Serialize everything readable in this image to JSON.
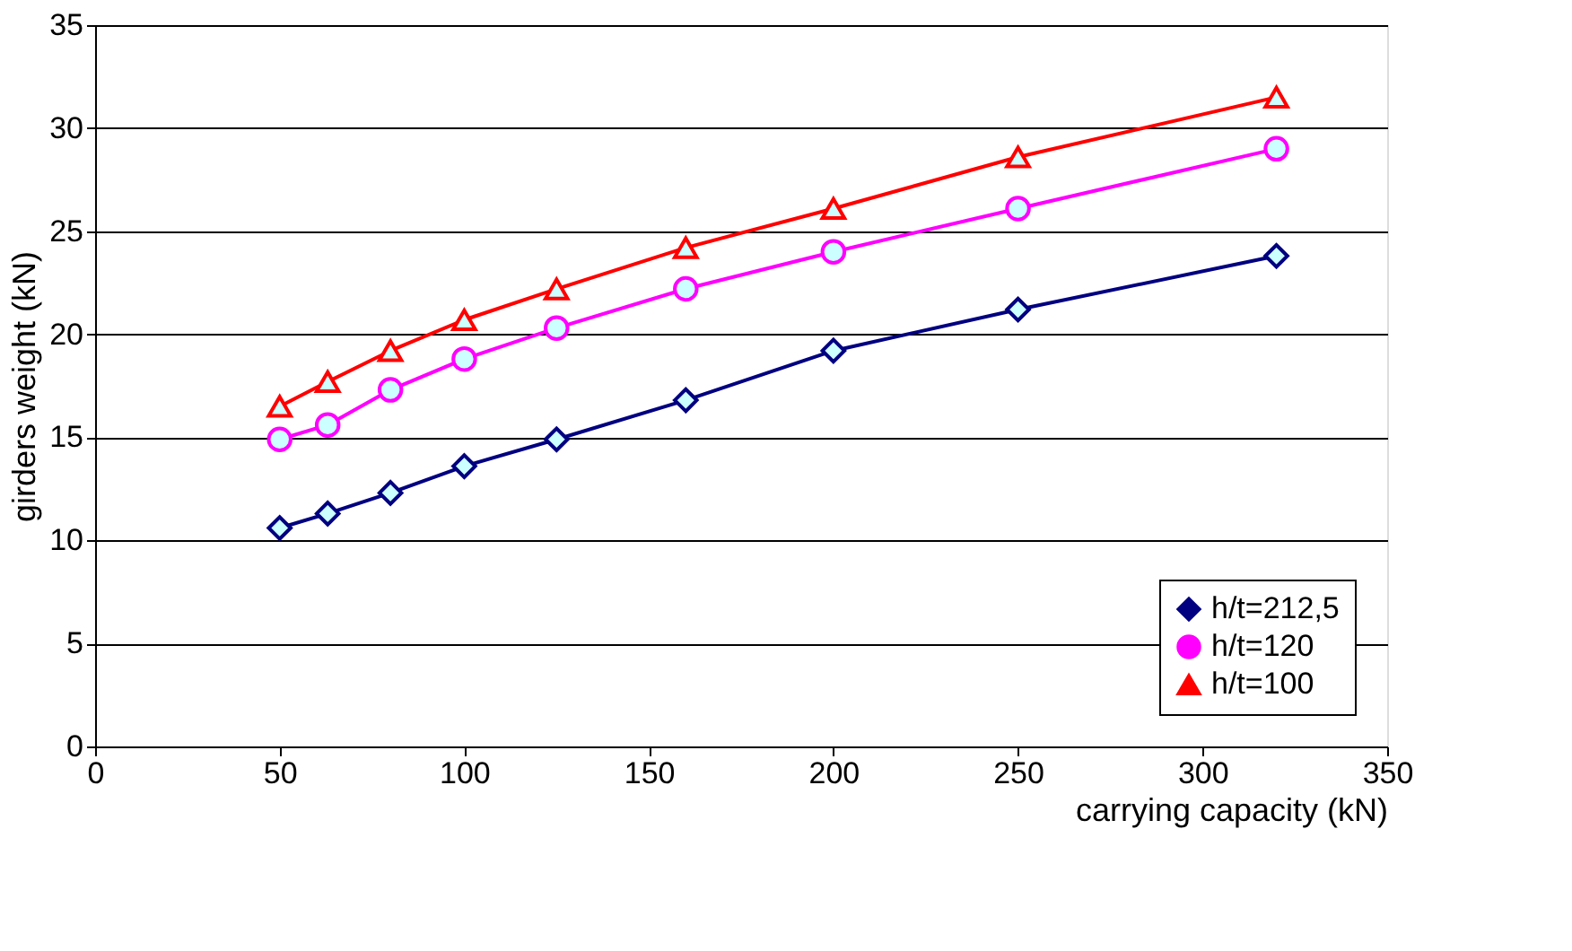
{
  "chart_data": {
    "type": "line",
    "xlabel": "carrying capacity (kN)",
    "ylabel": "girders weight (kN)",
    "x": [
      50,
      63,
      80,
      100,
      125,
      160,
      200,
      250,
      320
    ],
    "series": [
      {
        "name": "h/t=212,5",
        "color": "#000080",
        "marker": "diamond",
        "values": [
          10.6,
          11.3,
          12.3,
          13.6,
          14.9,
          16.8,
          19.2,
          21.2,
          23.8
        ]
      },
      {
        "name": "h/t=120",
        "color": "#ff00ff",
        "marker": "circle",
        "values": [
          14.9,
          15.6,
          17.3,
          18.8,
          20.3,
          22.2,
          24.0,
          26.1,
          29.0
        ]
      },
      {
        "name": "h/t=100",
        "color": "#ff0000",
        "marker": "triangle",
        "values": [
          16.5,
          17.7,
          19.2,
          20.7,
          22.2,
          24.2,
          26.1,
          28.6,
          31.5
        ]
      }
    ],
    "xlim": [
      0,
      350
    ],
    "xticks": [
      0,
      50,
      100,
      150,
      200,
      250,
      300,
      350
    ],
    "ylim": [
      0,
      35
    ],
    "yticks": [
      0,
      5,
      10,
      15,
      20,
      25,
      30,
      35
    ],
    "grid": "y",
    "legend": "bottom right",
    "line_style": "solid"
  }
}
